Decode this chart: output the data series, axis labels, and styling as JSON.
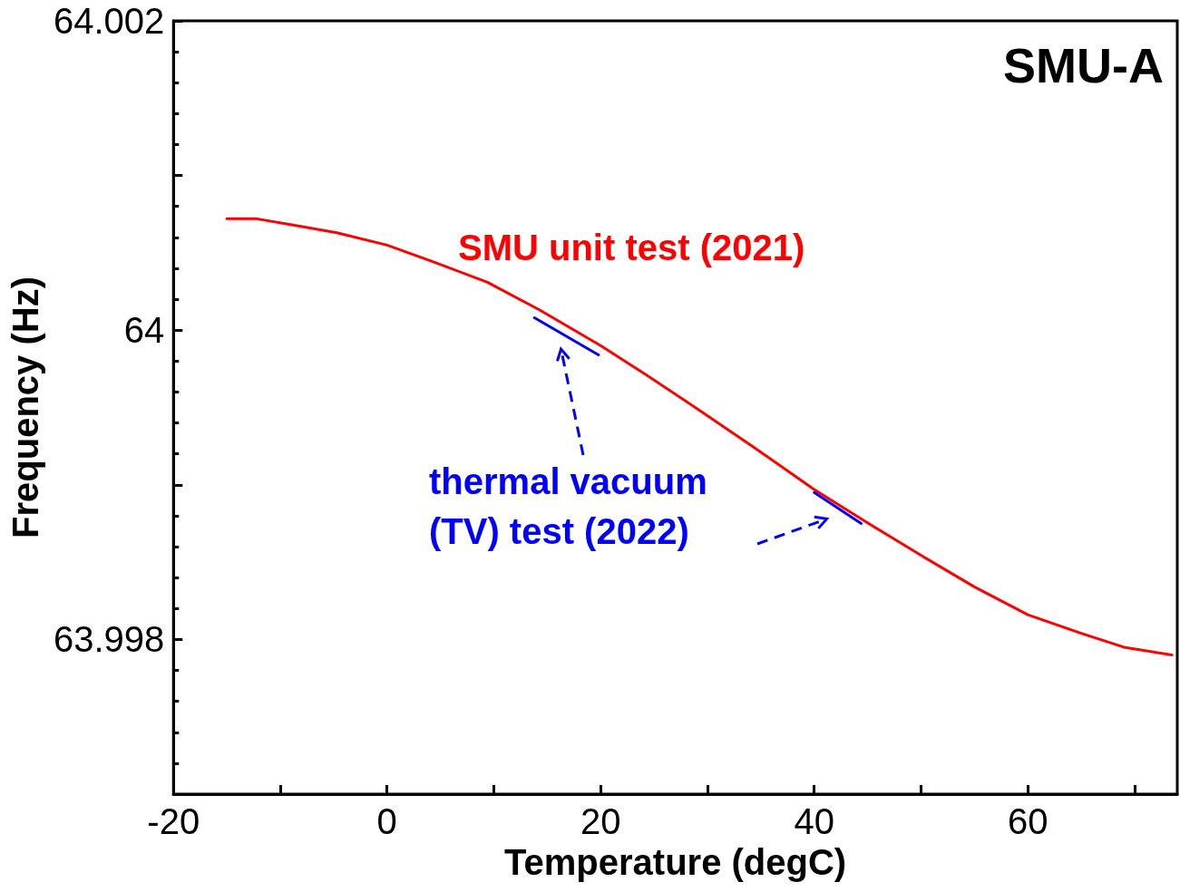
{
  "chart_data": {
    "type": "line",
    "xlabel": "Temperature (degC)",
    "ylabel": "Frequency (Hz)",
    "annotations": [
      "SMU-A"
    ],
    "series": [
      {
        "name": "SMU unit test (2021)",
        "color": "#ff0000",
        "x": [
          -15,
          -12.2,
          -8.8,
          -4.7,
          0,
          4.4,
          9.4,
          14.3,
          20,
          24.3,
          29.3,
          34.2,
          40,
          45.1,
          50.1,
          55,
          60,
          65,
          69,
          73.5
        ],
        "values": [
          64.00072,
          64.00072,
          64.00068,
          64.00063,
          64.00055,
          64.00044,
          64.00031,
          64.00013,
          63.9999,
          63.99971,
          63.99948,
          63.99925,
          63.99897,
          63.99875,
          63.99854,
          63.99834,
          63.99816,
          63.99804,
          63.99795,
          63.9979
        ]
      },
      {
        "name": "thermal vacuum (TV) test (2022)",
        "color": "#0000ff",
        "x": [
          13.8,
          19.8,
          30,
          40,
          44.4
        ],
        "values": [
          64.00008,
          63.99984,
          null,
          63.99895,
          63.99875
        ]
      }
    ],
    "xlim": [
      -20,
      74
    ],
    "ylim": [
      63.997,
      64.002
    ],
    "xticks": [
      -20,
      {
        "value": -10,
        "label": null
      },
      0,
      {
        "value": 10,
        "label": null
      },
      20,
      {
        "value": 30,
        "label": null
      },
      40,
      {
        "value": 50,
        "label": null
      },
      60,
      {
        "value": 70,
        "label": null
      }
    ],
    "yticks": [
      {
        "value": 63.997,
        "label": null
      },
      63.998,
      {
        "value": 63.999,
        "label": null
      },
      {
        "value": 64,
        "label": "64"
      },
      {
        "value": 64.001,
        "label": null
      },
      64.002
    ],
    "grid": false,
    "legend": false,
    "marker": "none",
    "line_style": "solid"
  }
}
